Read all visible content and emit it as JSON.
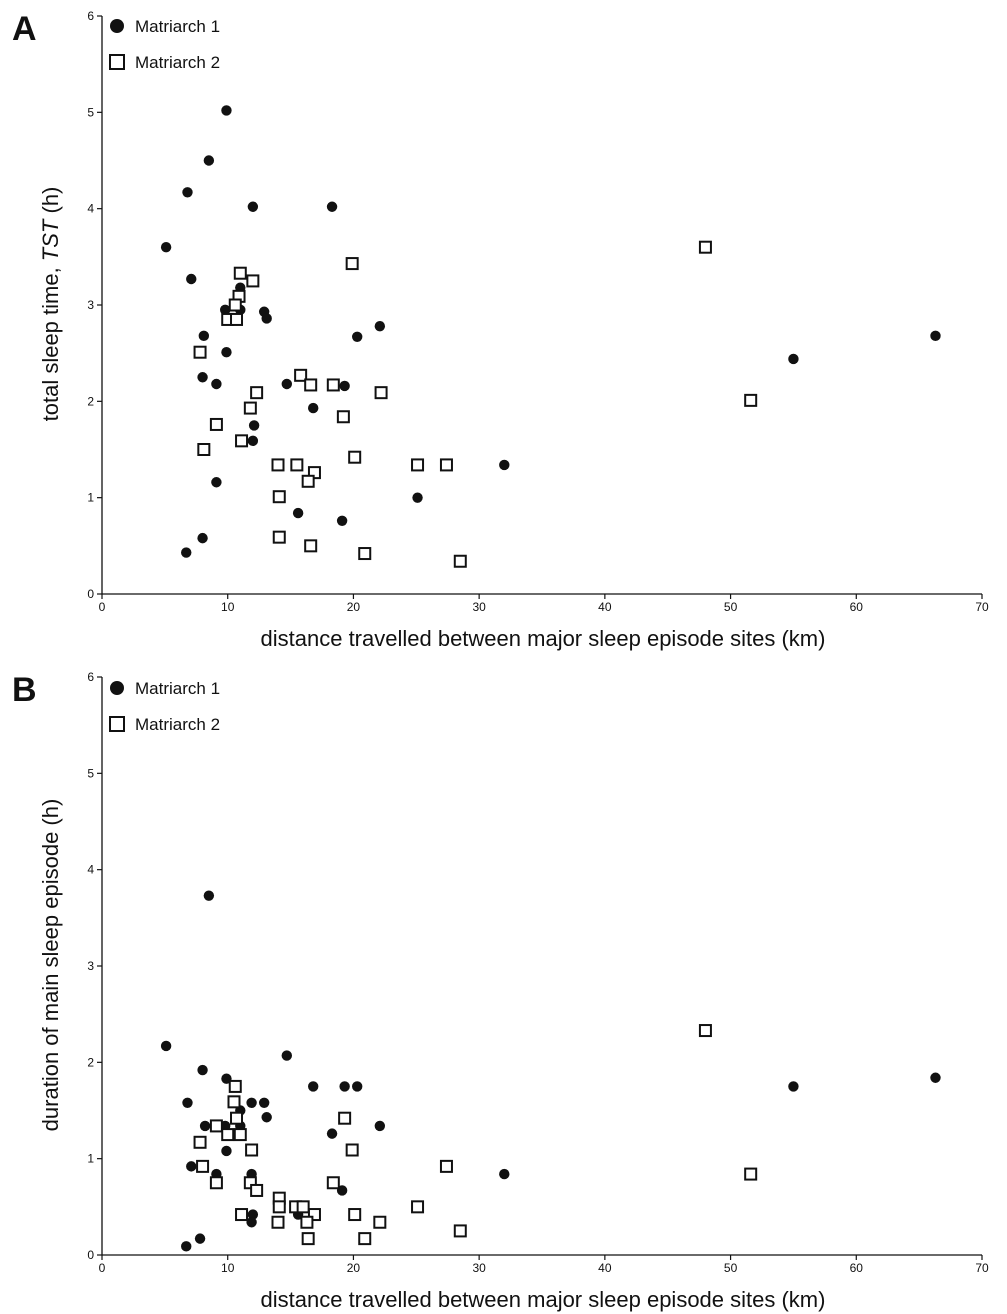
{
  "chart_data": [
    {
      "type": "scatter",
      "panel_label": "A",
      "xlabel": "distance travelled between major sleep episode sites (km)",
      "ylabel_prefix": "total sleep time, ",
      "ylabel_italic": "TST",
      "ylabel_suffix": " (h)",
      "xlim": [
        0,
        70
      ],
      "ylim": [
        0,
        6
      ],
      "xticks": [
        0,
        10,
        20,
        30,
        40,
        50,
        60,
        70
      ],
      "yticks": [
        0,
        1,
        2,
        3,
        4,
        5,
        6
      ],
      "legend_position": "top-left",
      "grid": false,
      "series": [
        {
          "name": "Matriarch 1",
          "marker": "filled-circle",
          "points": [
            [
              5.1,
              3.6
            ],
            [
              6.8,
              4.17
            ],
            [
              7.1,
              3.27
            ],
            [
              8.5,
              4.5
            ],
            [
              9.9,
              5.02
            ],
            [
              12.0,
              4.02
            ],
            [
              18.3,
              4.02
            ],
            [
              8.1,
              2.68
            ],
            [
              9.8,
              2.95
            ],
            [
              11.0,
              3.18
            ],
            [
              11.0,
              2.95
            ],
            [
              12.9,
              2.93
            ],
            [
              13.1,
              2.86
            ],
            [
              9.9,
              2.51
            ],
            [
              8.0,
              2.25
            ],
            [
              9.1,
              2.18
            ],
            [
              14.7,
              2.18
            ],
            [
              19.3,
              2.16
            ],
            [
              16.8,
              1.93
            ],
            [
              12.1,
              1.75
            ],
            [
              12.0,
              1.59
            ],
            [
              20.3,
              2.67
            ],
            [
              22.1,
              2.78
            ],
            [
              9.1,
              1.16
            ],
            [
              15.6,
              0.84
            ],
            [
              19.1,
              0.76
            ],
            [
              8.0,
              0.58
            ],
            [
              6.7,
              0.43
            ],
            [
              25.1,
              1.0
            ],
            [
              32.0,
              1.34
            ],
            [
              55.0,
              2.44
            ],
            [
              66.3,
              2.68
            ]
          ]
        },
        {
          "name": "Matriarch 2",
          "marker": "open-square",
          "points": [
            [
              11.0,
              3.33
            ],
            [
              12.0,
              3.25
            ],
            [
              10.9,
              3.09
            ],
            [
              10.6,
              3.0
            ],
            [
              10.0,
              2.85
            ],
            [
              10.7,
              2.85
            ],
            [
              7.8,
              2.51
            ],
            [
              15.8,
              2.27
            ],
            [
              16.6,
              2.17
            ],
            [
              18.4,
              2.17
            ],
            [
              12.3,
              2.09
            ],
            [
              22.2,
              2.09
            ],
            [
              11.8,
              1.93
            ],
            [
              19.2,
              1.84
            ],
            [
              9.1,
              1.76
            ],
            [
              11.1,
              1.59
            ],
            [
              8.1,
              1.5
            ],
            [
              20.1,
              1.42
            ],
            [
              14.0,
              1.34
            ],
            [
              15.5,
              1.34
            ],
            [
              16.9,
              1.26
            ],
            [
              16.4,
              1.17
            ],
            [
              25.1,
              1.34
            ],
            [
              27.4,
              1.34
            ],
            [
              14.1,
              1.01
            ],
            [
              14.1,
              0.59
            ],
            [
              16.6,
              0.5
            ],
            [
              20.9,
              0.42
            ],
            [
              28.5,
              0.34
            ],
            [
              19.9,
              3.43
            ],
            [
              48.0,
              3.6
            ],
            [
              51.6,
              2.01
            ]
          ]
        }
      ]
    },
    {
      "type": "scatter",
      "panel_label": "B",
      "xlabel": "distance travelled between major sleep episode sites (km)",
      "ylabel": "duration of main sleep episode (h)",
      "xlim": [
        0,
        70
      ],
      "ylim": [
        0,
        6
      ],
      "xticks": [
        0,
        10,
        20,
        30,
        40,
        50,
        60,
        70
      ],
      "yticks": [
        0,
        1,
        2,
        3,
        4,
        5,
        6
      ],
      "legend_position": "top-left",
      "grid": false,
      "series": [
        {
          "name": "Matriarch 1",
          "marker": "filled-circle",
          "points": [
            [
              8.5,
              3.73
            ],
            [
              5.1,
              2.17
            ],
            [
              14.7,
              2.07
            ],
            [
              8.0,
              1.92
            ],
            [
              6.8,
              1.58
            ],
            [
              9.9,
              1.83
            ],
            [
              11.9,
              1.58
            ],
            [
              12.9,
              1.58
            ],
            [
              11.0,
              1.5
            ],
            [
              13.1,
              1.43
            ],
            [
              8.2,
              1.34
            ],
            [
              9.8,
              1.34
            ],
            [
              11.0,
              1.34
            ],
            [
              16.8,
              1.75
            ],
            [
              19.3,
              1.75
            ],
            [
              20.3,
              1.75
            ],
            [
              18.3,
              1.26
            ],
            [
              22.1,
              1.34
            ],
            [
              9.9,
              1.08
            ],
            [
              7.1,
              0.92
            ],
            [
              9.1,
              0.84
            ],
            [
              11.9,
              0.84
            ],
            [
              12.0,
              0.42
            ],
            [
              11.9,
              0.34
            ],
            [
              15.6,
              0.42
            ],
            [
              19.1,
              0.67
            ],
            [
              7.8,
              0.17
            ],
            [
              6.7,
              0.09
            ],
            [
              32.0,
              0.84
            ],
            [
              55.0,
              1.75
            ],
            [
              66.3,
              1.84
            ]
          ]
        },
        {
          "name": "Matriarch 2",
          "marker": "open-square",
          "points": [
            [
              10.6,
              1.75
            ],
            [
              10.5,
              1.59
            ],
            [
              10.7,
              1.42
            ],
            [
              9.1,
              1.34
            ],
            [
              10.0,
              1.25
            ],
            [
              11.0,
              1.25
            ],
            [
              7.8,
              1.17
            ],
            [
              11.9,
              1.09
            ],
            [
              19.3,
              1.42
            ],
            [
              19.9,
              1.09
            ],
            [
              8.0,
              0.92
            ],
            [
              9.1,
              0.75
            ],
            [
              11.8,
              0.75
            ],
            [
              12.3,
              0.67
            ],
            [
              18.4,
              0.75
            ],
            [
              14.1,
              0.59
            ],
            [
              14.1,
              0.5
            ],
            [
              15.4,
              0.5
            ],
            [
              16.0,
              0.5
            ],
            [
              11.1,
              0.42
            ],
            [
              16.9,
              0.42
            ],
            [
              20.1,
              0.42
            ],
            [
              14.0,
              0.34
            ],
            [
              16.3,
              0.34
            ],
            [
              22.1,
              0.34
            ],
            [
              16.4,
              0.17
            ],
            [
              20.9,
              0.17
            ],
            [
              25.1,
              0.5
            ],
            [
              27.4,
              0.92
            ],
            [
              28.5,
              0.25
            ],
            [
              48.0,
              2.33
            ],
            [
              51.6,
              0.84
            ]
          ]
        }
      ]
    }
  ]
}
